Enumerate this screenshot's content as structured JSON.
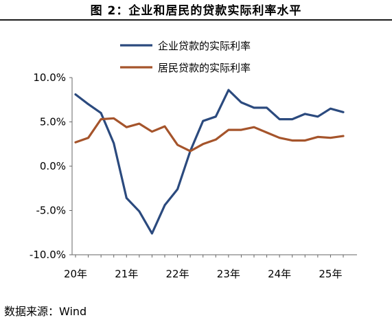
{
  "title": "图 2：企业和居民的贷款实际利率水平",
  "source": "数据来源：Wind",
  "chart_data": {
    "type": "line",
    "title": "图 2：企业和居民的贷款实际利率水平",
    "xlabel": "",
    "ylabel": "",
    "ylim": [
      -10,
      10
    ],
    "yticks": [
      "10.0%",
      "5.0%",
      "0.0%",
      "-5.0%",
      "-10.0%"
    ],
    "ytick_values": [
      10,
      5,
      0,
      -5,
      -10
    ],
    "xtick_labels": [
      "20年",
      "21年",
      "22年",
      "23年",
      "24年",
      "25年"
    ],
    "grid": false,
    "legend_position": "top",
    "x": [
      "2020Q1",
      "2020Q2",
      "2020Q3",
      "2020Q4",
      "2021Q1",
      "2021Q2",
      "2021Q3",
      "2021Q4",
      "2022Q1",
      "2022Q2",
      "2022Q3",
      "2022Q4",
      "2023Q1",
      "2023Q2",
      "2023Q3",
      "2023Q4",
      "2024Q1",
      "2024Q2",
      "2024Q3",
      "2024Q4",
      "2025Q1",
      "2025Q2"
    ],
    "series": [
      {
        "name": "企业贷款的实际利率",
        "color": "#2b4a7e",
        "values": [
          8.1,
          7.0,
          6.0,
          2.6,
          -3.6,
          -5.1,
          -7.6,
          -4.4,
          -2.6,
          1.7,
          5.1,
          5.6,
          8.6,
          7.2,
          6.6,
          6.6,
          5.3,
          5.3,
          5.9,
          5.6,
          6.5,
          6.1
        ]
      },
      {
        "name": "居民贷款的实际利率",
        "color": "#a5542b",
        "values": [
          2.7,
          3.2,
          5.3,
          5.4,
          4.4,
          4.8,
          3.9,
          4.5,
          2.4,
          1.7,
          2.5,
          3.0,
          4.1,
          4.1,
          4.4,
          3.8,
          3.2,
          2.9,
          2.9,
          3.3,
          3.2,
          3.4
        ]
      }
    ]
  }
}
